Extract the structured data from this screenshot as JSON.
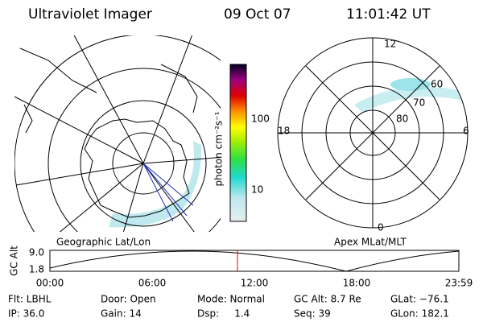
{
  "header": {
    "instrument": "Ultraviolet Imager",
    "date": "09 Oct 07",
    "time": "11:01:42 UT"
  },
  "colorbar": {
    "unit": "photon cm⁻²s⁻¹",
    "ticks": [
      "100",
      "10"
    ]
  },
  "polar_plot": {
    "mlt_labels": [
      "12",
      "18",
      "6",
      "0"
    ],
    "mlat_labels": [
      "60",
      "70",
      "80"
    ]
  },
  "panel_labels": [
    "Geographic Lat/Lon",
    "Apex MLat/MLT"
  ],
  "altitude_plot": {
    "ylabel": "GC Alt",
    "yticks": [
      "9.0",
      "1.8"
    ],
    "xticks": [
      "00:00",
      "06:00",
      "12:00",
      "18:00",
      "23:59"
    ]
  },
  "info": {
    "rows": [
      [
        "Flt: LBHL",
        "Door: Open",
        "Mode: Normal",
        "GC Alt: 8.7 Re",
        "GLat: −76.1"
      ],
      [
        "IP: 36.0",
        "Gain: 14",
        "Dsp:     1.4",
        "Seq: 39",
        "GLon: 182.1"
      ]
    ]
  }
}
